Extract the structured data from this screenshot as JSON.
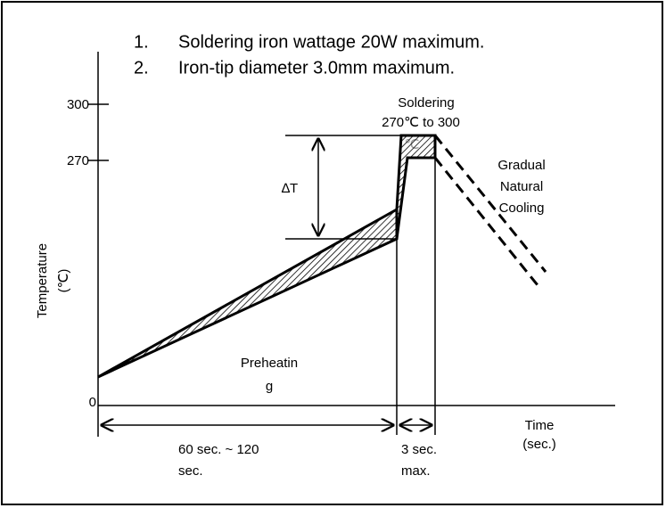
{
  "notes": [
    {
      "number": "1.",
      "text": "Soldering iron wattage 20W maximum."
    },
    {
      "number": "2.",
      "text": "Iron-tip diameter 3.0mm maximum."
    }
  ],
  "axis": {
    "y_label": "Temperature",
    "y_unit": "(℃)",
    "ticks": [
      "300",
      "270",
      "0"
    ],
    "x_label": "Time",
    "x_unit": "(sec.)"
  },
  "soldering": {
    "title": "Soldering",
    "range": "270℃  to 300",
    "unit": "℃"
  },
  "cooling": [
    "Gradual",
    "Natural",
    "Cooling"
  ],
  "delta": "∆T",
  "preheating": [
    "Preheatin",
    "g"
  ],
  "durations": [
    {
      "line1": "60 sec. ~ 120",
      "line2": "sec."
    },
    {
      "line1": "3 sec.",
      "line2": "max."
    }
  ]
}
